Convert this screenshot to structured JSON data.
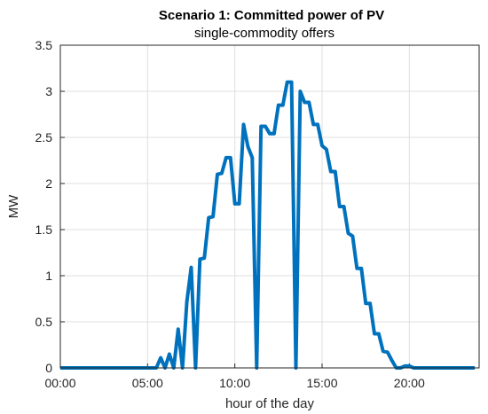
{
  "chart_data": {
    "type": "line",
    "title": "Scenario 1: Committed power of PV",
    "subtitle": "single-commodity offers",
    "xlabel": "hour of the day",
    "ylabel": "MW",
    "xlim": [
      0,
      24
    ],
    "ylim": [
      0,
      3.5
    ],
    "xticks": [
      0,
      5,
      10,
      15,
      20
    ],
    "xtick_labels": [
      "00:00",
      "05:00",
      "10:00",
      "15:00",
      "20:00"
    ],
    "yticks": [
      0,
      0.5,
      1,
      1.5,
      2,
      2.5,
      3,
      3.5
    ],
    "ytick_labels": [
      "0",
      "0.5",
      "1",
      "1.5",
      "2",
      "2.5",
      "3",
      "3.5"
    ],
    "grid": true,
    "series_color": "#0072BD",
    "series": [
      {
        "x": [
          0.0,
          0.25,
          0.5,
          0.75,
          1.0,
          1.25,
          1.5,
          1.75,
          2.0,
          2.25,
          2.5,
          2.75,
          3.0,
          3.25,
          3.5,
          3.75,
          4.0,
          4.25,
          4.5,
          4.75,
          5.0,
          5.25,
          5.5,
          5.75,
          6.0,
          6.25,
          6.5,
          6.75,
          7.0,
          7.25,
          7.5,
          7.75,
          8.0,
          8.25,
          8.5,
          8.75,
          9.0,
          9.25,
          9.5,
          9.75,
          10.0,
          10.25,
          10.5,
          10.75,
          11.0,
          11.25,
          11.5,
          11.75,
          12.0,
          12.25,
          12.5,
          12.75,
          13.0,
          13.25,
          13.5,
          13.75,
          14.0,
          14.25,
          14.5,
          14.75,
          15.0,
          15.25,
          15.5,
          15.75,
          16.0,
          16.25,
          16.5,
          16.75,
          17.0,
          17.25,
          17.5,
          17.75,
          18.0,
          18.25,
          18.5,
          18.75,
          19.0,
          19.25,
          19.5,
          19.75,
          20.0,
          20.25,
          20.5,
          20.75,
          21.0,
          21.25,
          21.5,
          21.75,
          22.0,
          22.25,
          22.5,
          22.75,
          23.0,
          23.25,
          23.5,
          23.75
        ],
        "y": [
          0,
          0,
          0,
          0,
          0,
          0,
          0,
          0,
          0,
          0,
          0,
          0,
          0,
          0,
          0,
          0,
          0,
          0,
          0,
          0,
          0,
          0,
          0,
          0.11,
          0,
          0.15,
          0,
          0.42,
          0,
          0.72,
          1.09,
          0,
          1.18,
          1.19,
          1.63,
          1.64,
          2.1,
          2.11,
          2.28,
          2.28,
          1.78,
          1.78,
          2.64,
          2.4,
          2.28,
          0,
          2.62,
          2.62,
          2.54,
          2.54,
          2.85,
          2.85,
          3.1,
          3.1,
          0,
          3.0,
          2.88,
          2.88,
          2.64,
          2.64,
          2.41,
          2.37,
          2.13,
          2.13,
          1.75,
          1.75,
          1.46,
          1.43,
          1.08,
          1.08,
          0.7,
          0.7,
          0.37,
          0.37,
          0.18,
          0.17,
          0.08,
          0.0,
          0.0,
          0.02,
          0.02,
          0,
          0,
          0,
          0,
          0,
          0,
          0,
          0,
          0,
          0,
          0,
          0,
          0,
          0,
          0
        ]
      }
    ]
  }
}
